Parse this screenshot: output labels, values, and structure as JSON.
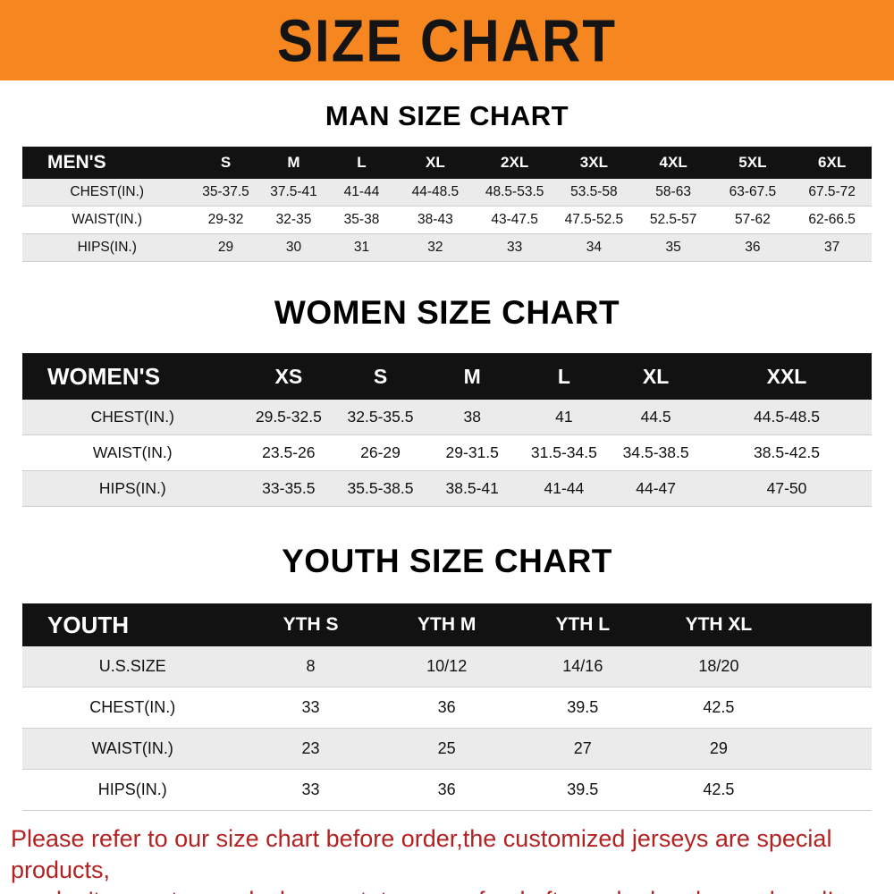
{
  "banner": {
    "title": "SIZE CHART",
    "background_color": "#f6861f",
    "text_color": "#141414"
  },
  "men": {
    "heading": "MAN SIZE CHART",
    "table": {
      "corner_label": "MEN'S",
      "sizes": [
        "S",
        "M",
        "L",
        "XL",
        "2XL",
        "3XL",
        "4XL",
        "5XL",
        "6XL"
      ],
      "rows": [
        {
          "label": "CHEST(IN.)",
          "values": [
            "35-37.5",
            "37.5-41",
            "41-44",
            "44-48.5",
            "48.5-53.5",
            "53.5-58",
            "58-63",
            "63-67.5",
            "67.5-72"
          ]
        },
        {
          "label": "WAIST(IN.)",
          "values": [
            "29-32",
            "32-35",
            "35-38",
            "38-43",
            "43-47.5",
            "47.5-52.5",
            "52.5-57",
            "57-62",
            "62-66.5"
          ]
        },
        {
          "label": "HIPS(IN.)",
          "values": [
            "29",
            "30",
            "31",
            "32",
            "33",
            "34",
            "35",
            "36",
            "37"
          ]
        }
      ]
    }
  },
  "women": {
    "heading": "WOMEN SIZE CHART",
    "table": {
      "corner_label": "WOMEN'S",
      "sizes": [
        "XS",
        "S",
        "M",
        "L",
        "XL",
        "XXL"
      ],
      "rows": [
        {
          "label": "CHEST(IN.)",
          "values": [
            "29.5-32.5",
            "32.5-35.5",
            "38",
            "41",
            "44.5",
            "44.5-48.5"
          ]
        },
        {
          "label": "WAIST(IN.)",
          "values": [
            "23.5-26",
            "26-29",
            "29-31.5",
            "31.5-34.5",
            "34.5-38.5",
            "38.5-42.5"
          ]
        },
        {
          "label": "HIPS(IN.)",
          "values": [
            "33-35.5",
            "35.5-38.5",
            "38.5-41",
            "41-44",
            "44-47",
            "47-50"
          ]
        }
      ]
    }
  },
  "youth": {
    "heading": "YOUTH SIZE CHART",
    "table": {
      "corner_label": "YOUTH",
      "sizes": [
        "YTH S",
        "YTH M",
        "YTH L",
        "YTH XL"
      ],
      "trailing_spacer": 1,
      "rows": [
        {
          "label": "U.S.SIZE",
          "values": [
            "8",
            "10/12",
            "14/16",
            "18/20"
          ]
        },
        {
          "label": "CHEST(IN.)",
          "values": [
            "33",
            "36",
            "39.5",
            "42.5"
          ]
        },
        {
          "label": "WAIST(IN.)",
          "values": [
            "23",
            "25",
            "27",
            "29"
          ]
        },
        {
          "label": "HIPS(IN.)",
          "values": [
            "33",
            "36",
            "39.5",
            "42.5"
          ]
        }
      ]
    }
  },
  "footer": {
    "lines": [
      "Please refer to our size chart before order,the customized jerseys are special products,",
      "we don't accept cancel, change, teturn or refund after order has been placed!"
    ],
    "text_color": "#b32222"
  },
  "table_colors": {
    "header_bg": "#121212",
    "header_text": "#ffffff",
    "row_alt_bg": "#ebebeb",
    "row_bg": "#ffffff"
  }
}
